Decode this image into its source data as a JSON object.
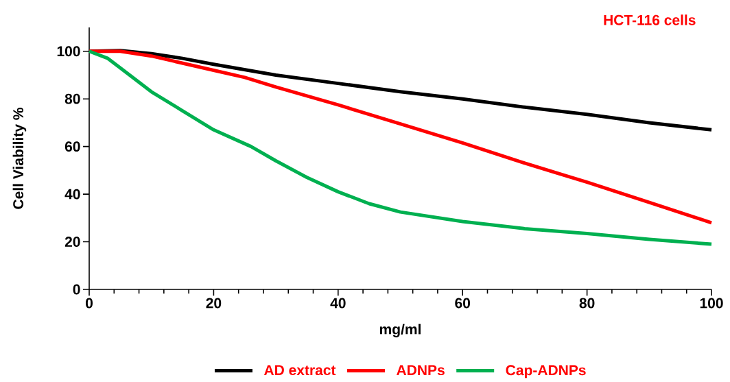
{
  "chart_data": {
    "type": "line",
    "title": "HCT-116 cells",
    "xlabel": "mg/ml",
    "ylabel": "Cell Viability %",
    "xlim": [
      0,
      100
    ],
    "ylim": [
      0,
      110
    ],
    "xticks": [
      0,
      20,
      40,
      60,
      80,
      100
    ],
    "yticks": [
      0,
      20,
      40,
      60,
      80,
      100
    ],
    "grid": false,
    "legend": "bottom",
    "marker": "none",
    "line_style": "solid",
    "series": [
      {
        "name": "AD extract",
        "color": "#000000",
        "x": [
          0,
          5,
          10,
          15,
          20,
          30,
          40,
          50,
          60,
          70,
          80,
          90,
          100
        ],
        "values": [
          100,
          100.3,
          99,
          97,
          94.5,
          90,
          86.5,
          83,
          80,
          76.5,
          73.5,
          70,
          67
        ]
      },
      {
        "name": "ADNPs",
        "color": "#ff0000",
        "x": [
          0,
          5,
          10,
          20,
          25,
          30,
          40,
          50,
          60,
          70,
          80,
          90,
          100
        ],
        "values": [
          100,
          100,
          98,
          92,
          89,
          85,
          77.5,
          69.5,
          61.5,
          53,
          45,
          36.5,
          28
        ]
      },
      {
        "name": "Cap-ADNPs",
        "color": "#00b050",
        "x": [
          0,
          3,
          6,
          10,
          15,
          20,
          26,
          30,
          35,
          40,
          45,
          50,
          60,
          70,
          80,
          90,
          100
        ],
        "values": [
          100,
          97,
          91,
          83,
          75,
          67,
          60,
          54,
          47,
          41,
          36,
          32.5,
          28.5,
          25.5,
          23.5,
          21,
          19
        ]
      }
    ]
  }
}
